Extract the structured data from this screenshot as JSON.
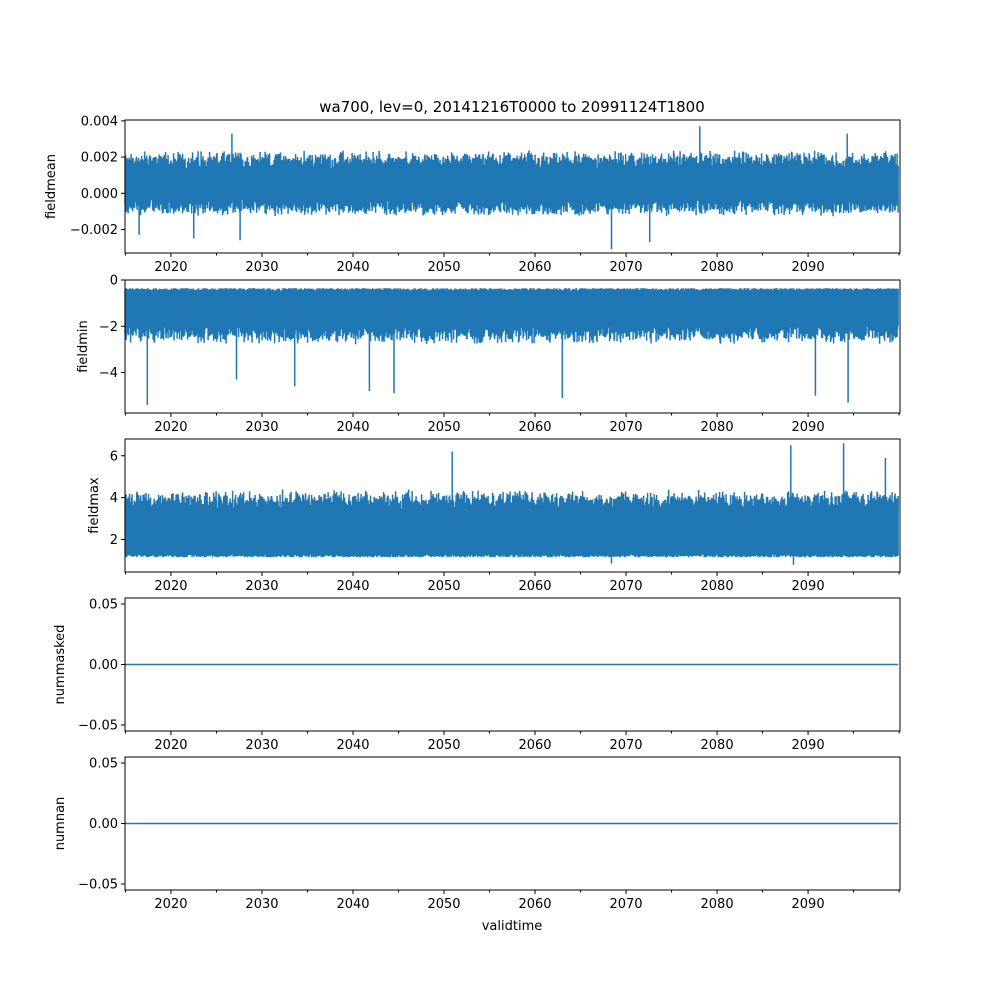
{
  "chart_data": {
    "type": "line",
    "title": "wa700, lev=0, 20141216T0000 to 20991124T1800",
    "xlabel": "validtime",
    "xlim": [
      2014.95,
      2100.1
    ],
    "x_range": [
      2014.96,
      2099.9
    ],
    "xticks": [
      2020,
      2030,
      2040,
      2050,
      2060,
      2070,
      2080,
      2090
    ],
    "xtick_labels": [
      "2020",
      "2030",
      "2040",
      "2050",
      "2060",
      "2070",
      "2080",
      "2090"
    ],
    "minor_xticks": [
      2015,
      2025,
      2035,
      2045,
      2055,
      2065,
      2075,
      2085,
      2095,
      2100
    ],
    "color": "#1f77b4",
    "panels": [
      {
        "ylabel": "fieldmean",
        "ylim": [
          -0.0033,
          0.00405
        ],
        "yticks": [
          0.004,
          0.002,
          0.0,
          -0.002
        ],
        "ytick_labels": [
          "0.004",
          "0.002",
          "0.000",
          "−0.002"
        ],
        "center": 0.0004,
        "typical_low": -0.0013,
        "typical_high": 0.0024,
        "spikes": [
          [
            2016.5,
            -0.0023
          ],
          [
            2022.5,
            -0.0025
          ],
          [
            2026.7,
            0.0033
          ],
          [
            2027.6,
            -0.0026
          ],
          [
            2068.4,
            -0.0031
          ],
          [
            2078.1,
            0.0037
          ],
          [
            2072.6,
            -0.0027
          ],
          [
            2094.3,
            0.0033
          ]
        ]
      },
      {
        "ylabel": "fieldmin",
        "ylim": [
          -5.75,
          0.0
        ],
        "yticks": [
          0,
          -2,
          -4
        ],
        "ytick_labels": [
          "0",
          "−2",
          "−4"
        ],
        "center": -1.3,
        "typical_low": -2.8,
        "typical_high": -0.35,
        "spikes": [
          [
            2017.4,
            -5.4
          ],
          [
            2027.2,
            -4.3
          ],
          [
            2033.6,
            -4.6
          ],
          [
            2041.8,
            -4.8
          ],
          [
            2044.5,
            -4.9
          ],
          [
            2063.0,
            -5.1
          ],
          [
            2090.8,
            -5.0
          ],
          [
            2094.4,
            -5.3
          ]
        ]
      },
      {
        "ylabel": "fieldmax",
        "ylim": [
          0.45,
          6.8
        ],
        "yticks": [
          6,
          4,
          2
        ],
        "ytick_labels": [
          "6",
          "4",
          "2"
        ],
        "center": 2.6,
        "typical_low": 1.3,
        "typical_high": 4.4,
        "spikes": [
          [
            2050.9,
            6.2
          ],
          [
            2088.1,
            6.5
          ],
          [
            2093.9,
            6.6
          ],
          [
            2098.5,
            5.9
          ],
          [
            2068.4,
            0.85
          ],
          [
            2088.4,
            0.8
          ]
        ]
      },
      {
        "ylabel": "nummasked",
        "ylim": [
          -0.055,
          0.055
        ],
        "yticks": [
          0.05,
          0.0,
          -0.05
        ],
        "ytick_labels": [
          "0.05",
          "0.00",
          "−0.05"
        ],
        "constant": 0.0
      },
      {
        "ylabel": "numnan",
        "ylim": [
          -0.055,
          0.055
        ],
        "yticks": [
          0.05,
          0.0,
          -0.05
        ],
        "ytick_labels": [
          "0.05",
          "0.00",
          "−0.05"
        ],
        "constant": 0.0
      }
    ]
  }
}
